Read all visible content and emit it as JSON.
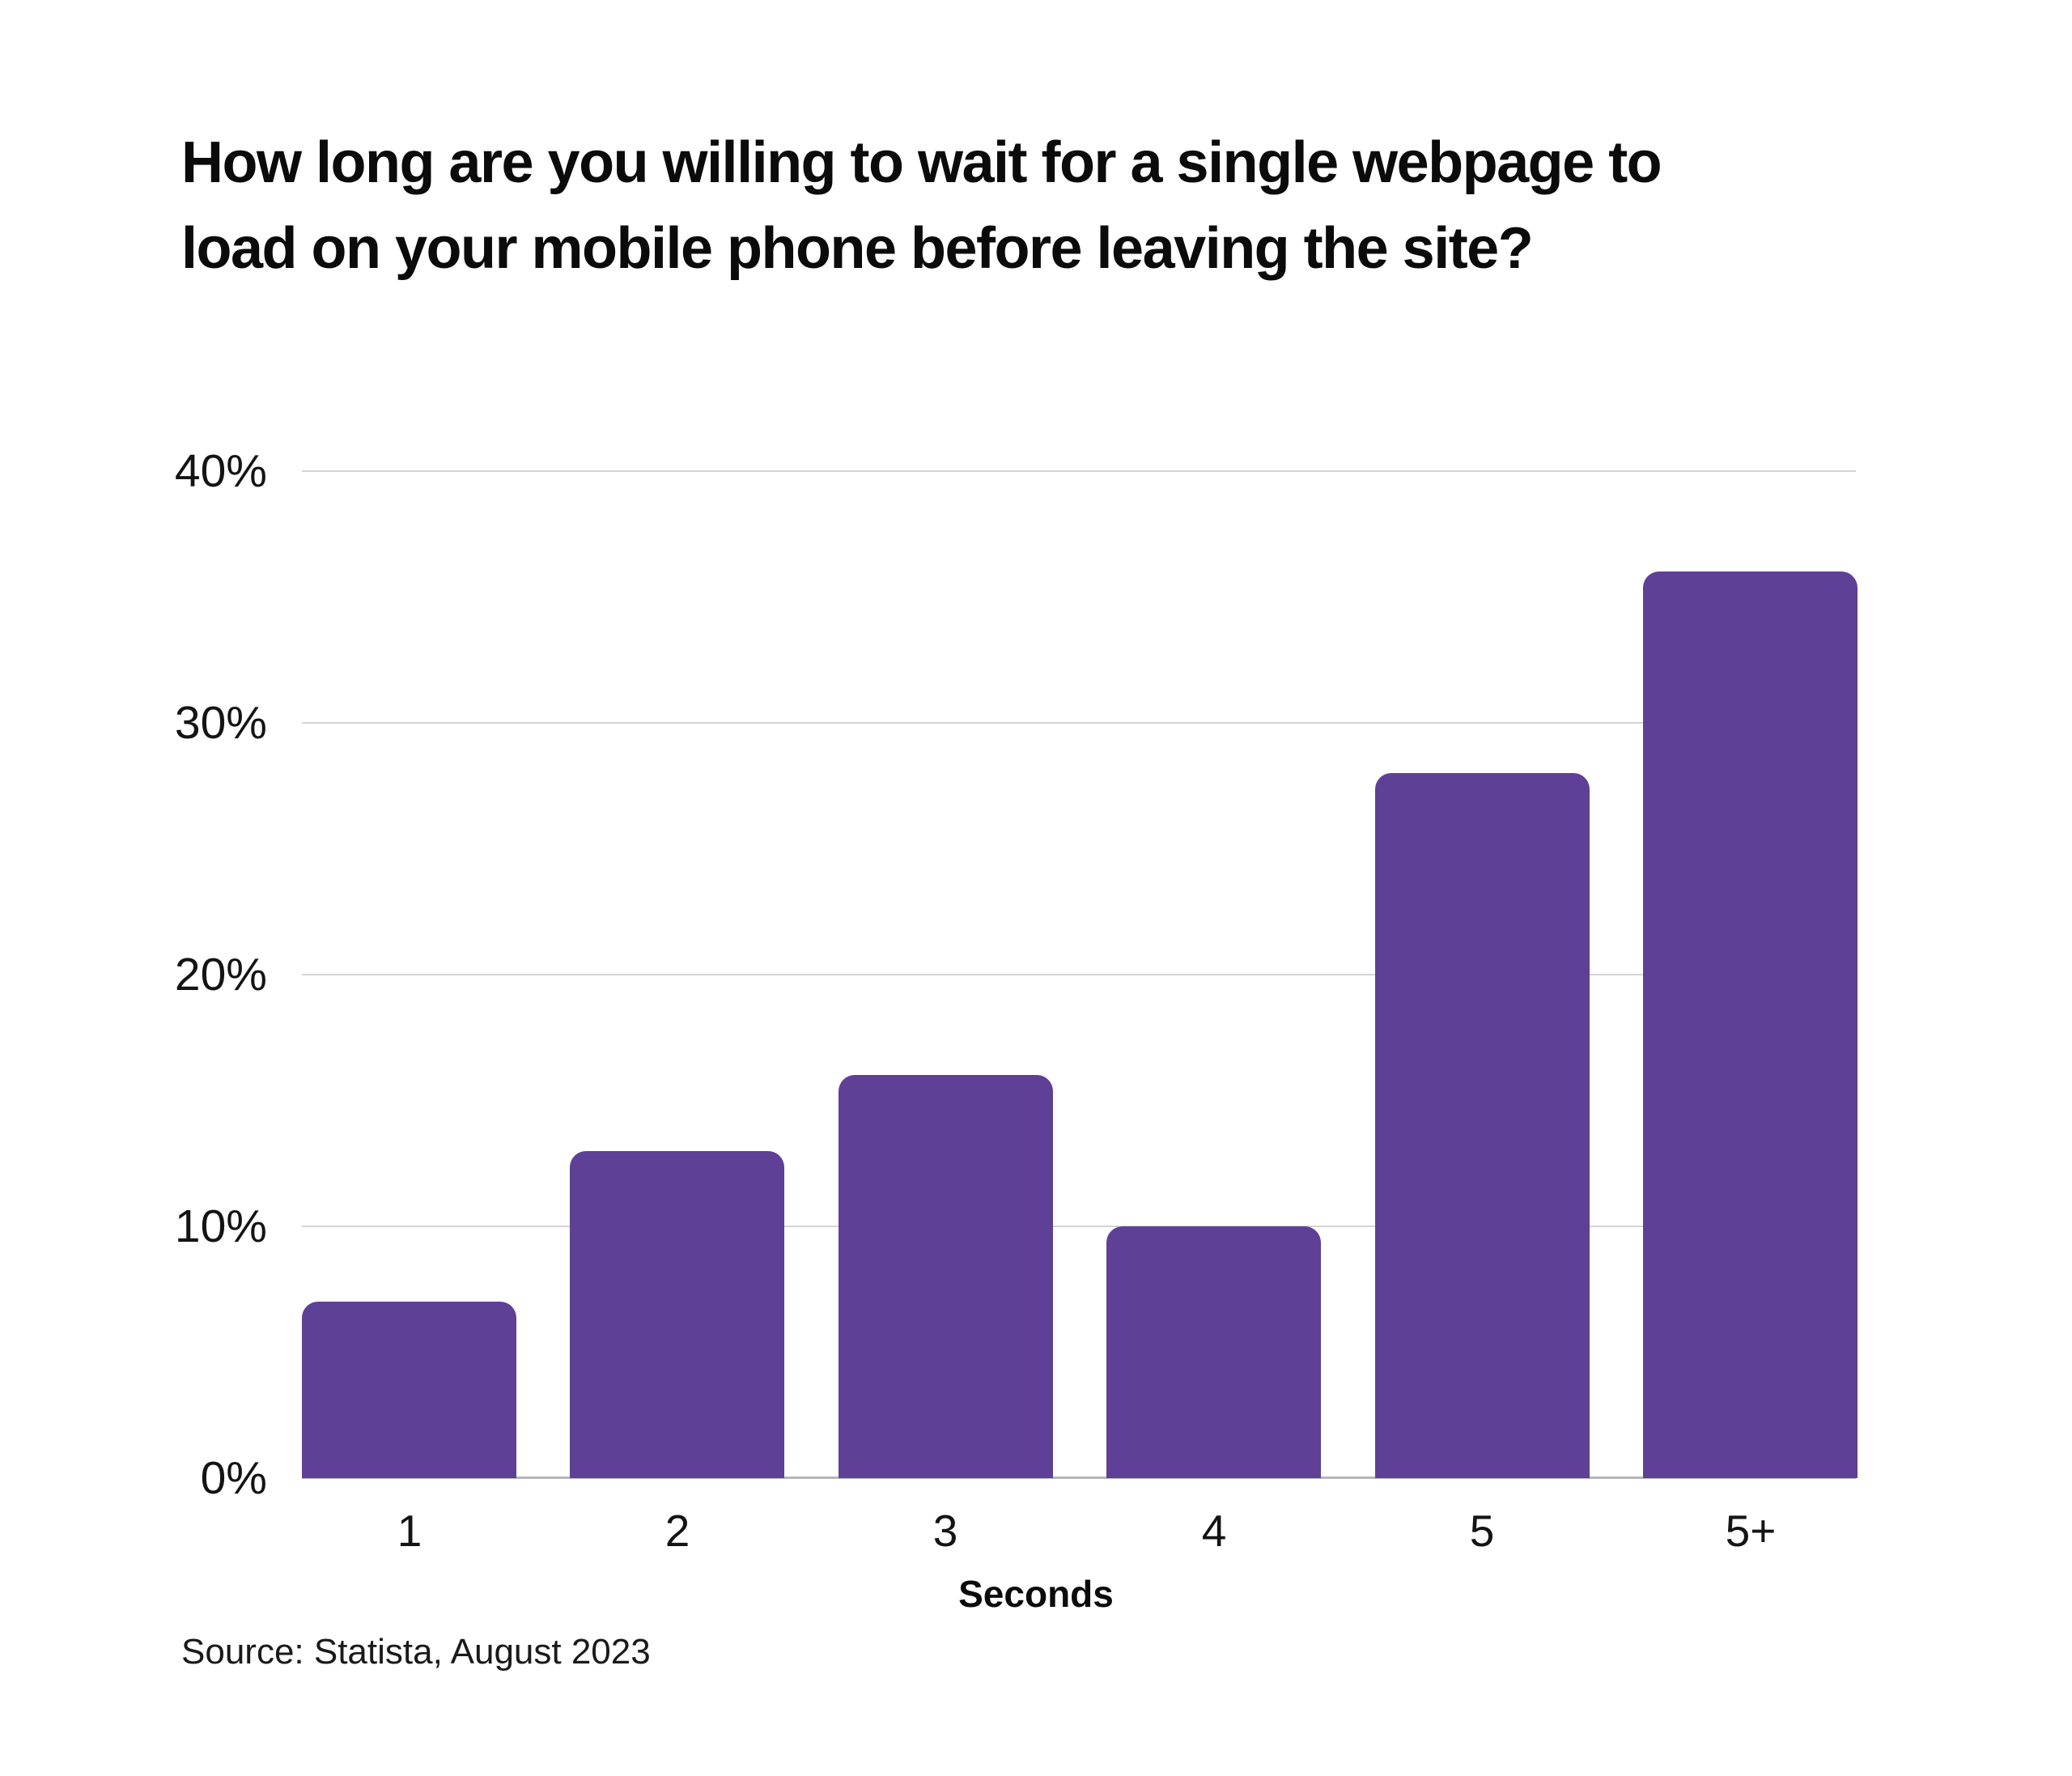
{
  "title": {
    "line1": "How long are you willing to wait for a single webpage to",
    "line2": "load on your mobile phone before leaving the site?"
  },
  "x_axis_title": "Seconds",
  "source": "Source: Statista, August 2023",
  "colors": {
    "bar": "#5e4096",
    "gridline": "#d4d4d4",
    "baseline": "#b7b7b7",
    "text": "#141414"
  },
  "chart_data": {
    "type": "bar",
    "title": "How long are you willing to wait for a single webpage to load on your mobile phone before leaving the site?",
    "categories": [
      "1",
      "2",
      "3",
      "4",
      "5",
      "5+"
    ],
    "values": [
      7,
      13,
      16,
      10,
      28,
      36
    ],
    "unit": "%",
    "xlabel": "Seconds",
    "ylabel": "",
    "ylim": [
      0,
      40
    ],
    "yticks": [
      0,
      10,
      20,
      30,
      40
    ],
    "ytick_labels": [
      "0%",
      "10%",
      "20%",
      "30%",
      "40%"
    ],
    "grid": "horizontal",
    "legend": "none",
    "bar_color": "#5e4096",
    "source": "Source: Statista, August 2023"
  }
}
